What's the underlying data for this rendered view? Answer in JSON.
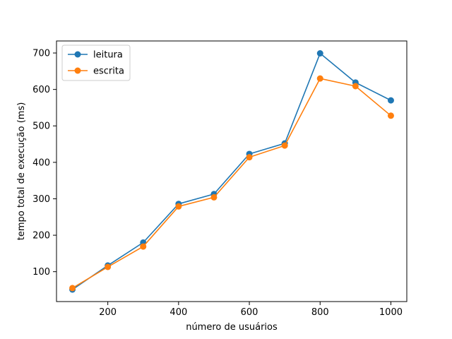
{
  "chart_data": {
    "type": "line",
    "title": "",
    "xlabel": "número de usuários",
    "ylabel": "tempo total de execução (ms)",
    "x": [
      100,
      200,
      300,
      400,
      500,
      600,
      700,
      800,
      900,
      1000
    ],
    "xlim": [
      55,
      1045
    ],
    "ylim": [
      18,
      733
    ],
    "xticks": [
      200,
      400,
      600,
      800,
      1000
    ],
    "yticks": [
      100,
      200,
      300,
      400,
      500,
      600,
      700
    ],
    "grid": false,
    "legend_position": "top-left",
    "series": [
      {
        "name": "leitura",
        "color": "#1f77b4",
        "marker": "circle",
        "values": [
          51,
          117,
          180,
          286,
          313,
          423,
          452,
          699,
          619,
          570
        ]
      },
      {
        "name": "escrita",
        "color": "#ff7f0e",
        "marker": "circle",
        "values": [
          55,
          113,
          169,
          279,
          304,
          414,
          446,
          630,
          609,
          528
        ]
      }
    ]
  }
}
